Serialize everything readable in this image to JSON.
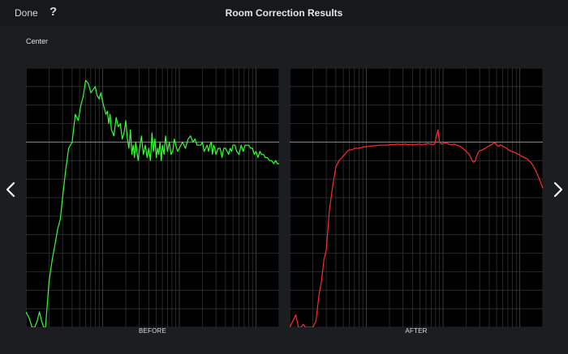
{
  "header": {
    "done_label": "Done",
    "help_label": "?",
    "title": "Room Correction Results"
  },
  "channel_label": "Center",
  "nav": {
    "prev_icon": "chevron-left-icon",
    "next_icon": "chevron-right-icon"
  },
  "colors": {
    "background": "#1b1d21",
    "plot_background": "#000000",
    "grid": "#3a3a3a",
    "reference_line": "#8c8c8c",
    "before_trace": "#33ff33",
    "after_trace": "#ff2b2b"
  },
  "chart_data": [
    {
      "type": "line",
      "caption": "BEFORE",
      "x_scale": "log",
      "xlim": [
        10,
        20000
      ],
      "ylim": [
        -60,
        24
      ],
      "grid": true,
      "series": [
        {
          "x": [
            10,
            11,
            12,
            13,
            14,
            15,
            16,
            17,
            18,
            20,
            22,
            24,
            26,
            28,
            30,
            33,
            36,
            40,
            44,
            48,
            52,
            56,
            60,
            65,
            70,
            75,
            80,
            85,
            90,
            95,
            100,
            105,
            110,
            115,
            120,
            125,
            130,
            140,
            150,
            160,
            170,
            180,
            190,
            200,
            210,
            220,
            230,
            240,
            250,
            260,
            270,
            280,
            290,
            300,
            320,
            340,
            360,
            380,
            400,
            420,
            440,
            460,
            480,
            500,
            520,
            540,
            560,
            580,
            600,
            630,
            660,
            700,
            740,
            780,
            820,
            860,
            900,
            950,
            1000,
            1100,
            1200,
            1300,
            1400,
            1500,
            1600,
            1700,
            1800,
            1900,
            2000,
            2100,
            2200,
            2300,
            2400,
            2500,
            2600,
            2700,
            2800,
            2900,
            3000,
            3200,
            3400,
            3600,
            3800,
            4000,
            4200,
            4400,
            4600,
            4800,
            5000,
            5300,
            5600,
            6000,
            6400,
            6800,
            7200,
            7600,
            8000,
            8500,
            9000,
            9500,
            10000,
            10600,
            11200,
            11800,
            12500,
            13200,
            14000,
            15000,
            16000,
            17000,
            18000,
            19000,
            20000
          ],
          "values": [
            -55,
            -57,
            -60,
            -60,
            -58,
            -55,
            -58,
            -60,
            -60,
            -45,
            -38,
            -33,
            -28,
            -25,
            -18,
            -9,
            -2,
            0,
            9,
            7,
            12,
            15,
            20,
            19,
            16,
            17,
            18,
            15,
            14,
            16,
            13,
            11,
            9,
            10,
            6,
            9,
            4,
            2,
            8,
            5,
            6,
            1,
            3,
            7,
            1,
            -2,
            4,
            -4,
            -1,
            -5,
            0,
            -3,
            -6,
            -3,
            2,
            -4,
            -1,
            -5,
            -2,
            -6,
            3,
            -3,
            1,
            -5,
            -2,
            -4,
            0,
            -6,
            -1,
            -4,
            2,
            -3,
            0,
            -4,
            -3,
            1,
            -1,
            -3,
            -2,
            0,
            -2,
            1,
            2,
            0,
            1,
            -1,
            -1,
            -1,
            0,
            -3,
            -2,
            -1,
            -3,
            -1,
            0,
            -4,
            -1,
            -2,
            -4,
            -2,
            -2,
            -5,
            -2,
            -2,
            -3,
            -4,
            -2,
            -3,
            -1,
            -1,
            -3,
            -4,
            -1,
            -3,
            -1,
            -1,
            -1,
            -2,
            -2,
            -4,
            -3,
            -5,
            -3,
            -4,
            -4,
            -5,
            -5,
            -6,
            -6,
            -7,
            -6,
            -7,
            -7
          ]
        }
      ]
    },
    {
      "type": "line",
      "caption": "AFTER",
      "x_scale": "log",
      "xlim": [
        10,
        20000
      ],
      "ylim": [
        -60,
        24
      ],
      "grid": true,
      "series": [
        {
          "x": [
            10,
            11,
            12,
            13,
            14,
            15,
            16,
            17,
            18,
            20,
            22,
            24,
            26,
            28,
            30,
            33,
            36,
            40,
            44,
            48,
            52,
            56,
            60,
            65,
            70,
            75,
            80,
            85,
            90,
            95,
            100,
            105,
            110,
            115,
            120,
            125,
            130,
            140,
            150,
            160,
            170,
            180,
            190,
            200,
            210,
            220,
            230,
            240,
            250,
            260,
            270,
            280,
            290,
            300,
            320,
            340,
            360,
            380,
            400,
            420,
            440,
            460,
            480,
            500,
            520,
            540,
            560,
            580,
            600,
            630,
            660,
            700,
            740,
            780,
            820,
            860,
            900,
            950,
            1000,
            1100,
            1200,
            1300,
            1400,
            1500,
            1600,
            1700,
            1800,
            1900,
            2000,
            2100,
            2200,
            2300,
            2400,
            2500,
            2600,
            2700,
            2800,
            2900,
            3000,
            3200,
            3400,
            3600,
            3800,
            4000,
            4200,
            4400,
            4600,
            4800,
            5000,
            5300,
            5600,
            6000,
            6400,
            6800,
            7200,
            7600,
            8000,
            8500,
            9000,
            9500,
            10000,
            10600,
            11200,
            11800,
            12500,
            13200,
            14000,
            15000,
            16000,
            17000,
            18000,
            19000,
            20000
          ],
          "values": [
            -60,
            -58,
            -56,
            -60,
            -60,
            -59,
            -60,
            -60,
            -60,
            -60,
            -58,
            -50,
            -45,
            -38,
            -35,
            -22,
            -15,
            -8,
            -6,
            -5,
            -4,
            -3,
            -2.5,
            -2.5,
            -2,
            -2,
            -2,
            -1.8,
            -1.6,
            -1.5,
            -1.5,
            -1.4,
            -1.3,
            -1.3,
            -1.2,
            -1.2,
            -1.2,
            -1.1,
            -1.0,
            -1.0,
            -1.0,
            -1.0,
            -0.9,
            -0.9,
            -0.8,
            -0.8,
            -0.8,
            -0.7,
            -0.7,
            -0.6,
            -0.7,
            -0.8,
            -0.7,
            -0.8,
            -0.6,
            -0.8,
            -0.8,
            -0.7,
            -0.9,
            -0.8,
            -0.7,
            -0.8,
            -0.6,
            -0.7,
            -0.9,
            -0.8,
            -0.7,
            -0.6,
            -0.8,
            -0.4,
            -0.6,
            -0.7,
            -0.8,
            -0.5,
            2,
            4,
            0,
            -0.6,
            -0.5,
            -0.2,
            -0.7,
            -0.9,
            -0.6,
            -1.0,
            -1.2,
            -1.5,
            -2,
            -2.5,
            -3,
            -3.5,
            -4,
            -5,
            -6,
            -6.5,
            -6.3,
            -5,
            -4,
            -3.2,
            -2.8,
            -2.6,
            -2.2,
            -1.9,
            -1.5,
            -1.2,
            -1.0,
            -0.6,
            -0.2,
            -0.3,
            -1.0,
            -1.4,
            -0.9,
            -1.3,
            -1.7,
            -2.1,
            -2.6,
            -2.9,
            -3.1,
            -3.3,
            -3.6,
            -3.9,
            -4.2,
            -4.6,
            -4.9,
            -5.1,
            -5.4,
            -6.1,
            -6.6,
            -7.8,
            -9,
            -10.5,
            -12,
            -13.5,
            -15
          ]
        }
      ]
    }
  ]
}
